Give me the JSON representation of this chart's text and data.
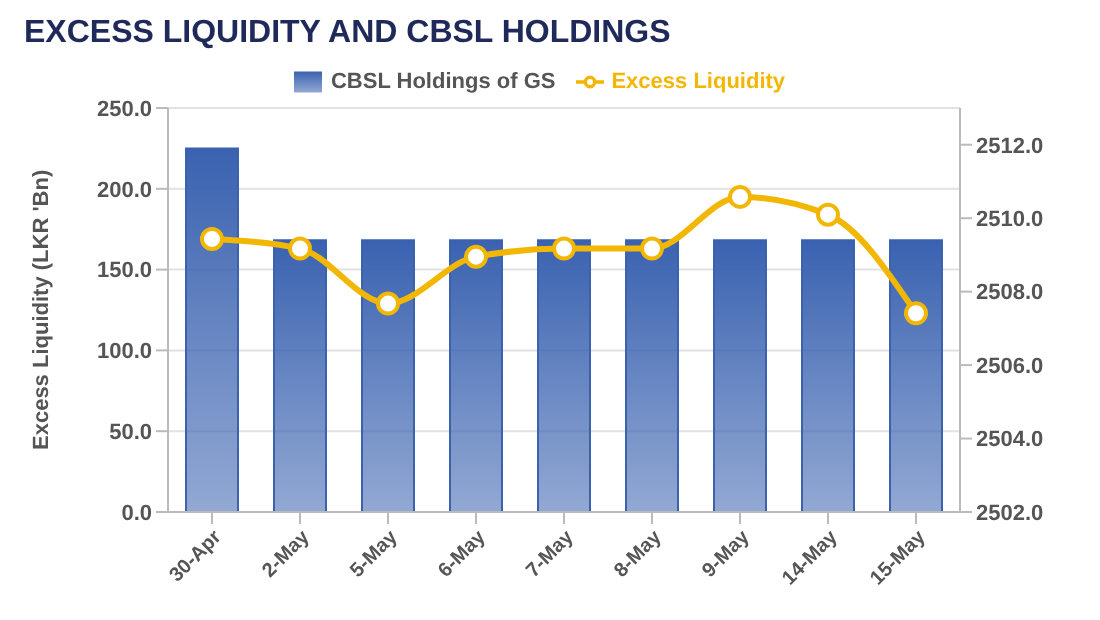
{
  "chart_data": {
    "type": "bar",
    "title": "EXCESS LIQUIDITY AND CBSL HOLDINGS",
    "ylabel": "Excess Liquidity (LKR 'Bn)",
    "categories": [
      "30-Apr",
      "2-May",
      "5-May",
      "6-May",
      "7-May",
      "8-May",
      "9-May",
      "14-May",
      "15-May"
    ],
    "series": [
      {
        "name": "CBSL Holdings of GS",
        "axis": "y2",
        "color": "#3a62b0",
        "values": [
          2511.9,
          2509.4,
          2509.4,
          2509.4,
          2509.4,
          2509.4,
          2509.4,
          2509.4,
          2509.4
        ]
      },
      {
        "name": "Excess Liquidity",
        "type": "line",
        "color": "#f2b705",
        "values": [
          169,
          163,
          129,
          158,
          163,
          163,
          195,
          184,
          123
        ]
      }
    ],
    "ylim": [
      0,
      250
    ],
    "yticks": [
      {
        "value": 0,
        "label": "0.0"
      },
      {
        "value": 50,
        "label": "50.0"
      },
      {
        "value": 100,
        "label": "100.0"
      },
      {
        "value": 150,
        "label": "150.0"
      },
      {
        "value": 200,
        "label": "200.0"
      },
      {
        "value": 250,
        "label": "250.0"
      }
    ],
    "y2lim": [
      2502,
      2513
    ],
    "y2ticks": [
      {
        "value": 2502,
        "label": "2502.0"
      },
      {
        "value": 2504,
        "label": "2504.0"
      },
      {
        "value": 2506,
        "label": "2506.0"
      },
      {
        "value": 2508,
        "label": "2508.0"
      },
      {
        "value": 2510,
        "label": "2510.0"
      },
      {
        "value": 2512,
        "label": "2512.0"
      }
    ],
    "grid": "y",
    "legend": "top",
    "marker": "circle"
  }
}
